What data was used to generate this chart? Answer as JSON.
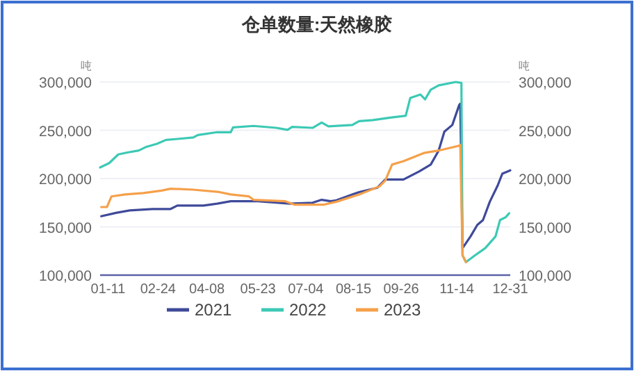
{
  "chart_data": {
    "type": "line",
    "title": "仓单数量:天然橡胶",
    "ylabel": "吨",
    "y2label": "吨",
    "xlim": [
      "--01-04",
      "--12-31"
    ],
    "xticks": [
      {
        "value": "--01-11",
        "label": "01-11"
      },
      {
        "value": "--02-24",
        "label": "02-24"
      },
      {
        "value": "--04-08",
        "label": "04-08"
      },
      {
        "value": "--05-23",
        "label": "05-23"
      },
      {
        "value": "--07-04",
        "label": "07-04"
      },
      {
        "value": "--08-15",
        "label": "08-15"
      },
      {
        "value": "--09-26",
        "label": "09-26"
      },
      {
        "value": "--11-14",
        "label": "11-14"
      },
      {
        "value": "--12-31",
        "label": "12-31"
      }
    ],
    "ylim": [
      100000,
      300000
    ],
    "yticks": [
      {
        "value": 100000,
        "label": "100,000"
      },
      {
        "value": 150000,
        "label": "150,000"
      },
      {
        "value": 200000,
        "label": "200,000"
      },
      {
        "value": 250000,
        "label": "250,000"
      },
      {
        "value": 300000,
        "label": "300,000"
      }
    ],
    "y2lim": [
      100000,
      300000
    ],
    "y2ticks": [
      {
        "value": 100000,
        "label": "100,000"
      },
      {
        "value": 150000,
        "label": "150,000"
      },
      {
        "value": 200000,
        "label": "200,000"
      },
      {
        "value": 250000,
        "label": "250,000"
      },
      {
        "value": 300000,
        "label": "300,000"
      }
    ],
    "grid": "y",
    "legend": "bottom",
    "marker": "none",
    "line_style": "solid",
    "series": [
      {
        "name": "2021",
        "color": "#3f4a9a",
        "x": [
          "--01-05",
          "--01-18",
          "--01-30",
          "--02-19",
          "--03-07",
          "--03-13",
          "--04-05",
          "--04-17",
          "--04-29",
          "--05-23",
          "--06-20",
          "--07-10",
          "--07-18",
          "--07-26",
          "--07-31",
          "--08-08",
          "--08-20",
          "--09-05",
          "--09-12",
          "--09-28",
          "--10-12",
          "--10-22",
          "--10-29",
          "--11-03",
          "--11-10",
          "--11-16",
          "--11-17",
          "--11-19",
          "--11-26",
          "--12-02",
          "--12-07",
          "--12-13",
          "--12-20",
          "--12-24",
          "--12-31"
        ],
        "values": [
          161000,
          164500,
          167000,
          168500,
          168500,
          172000,
          172000,
          174000,
          176500,
          176500,
          174000,
          175000,
          178000,
          176500,
          177500,
          181000,
          186000,
          190500,
          199000,
          199000,
          207500,
          214500,
          229000,
          248500,
          255500,
          276000,
          277500,
          128000,
          140000,
          152000,
          157000,
          176000,
          193000,
          205000,
          208500
        ]
      },
      {
        "name": "2022",
        "color": "#3cc9b5",
        "x": [
          "--01-04",
          "--01-12",
          "--01-20",
          "--01-28",
          "--02-07",
          "--02-13",
          "--02-23",
          "--03-03",
          "--03-13",
          "--03-27",
          "--03-31",
          "--04-17",
          "--04-29",
          "--05-01",
          "--05-19",
          "--06-08",
          "--06-18",
          "--06-22",
          "--07-10",
          "--07-18",
          "--07-24",
          "--08-14",
          "--08-20",
          "--09-01",
          "--09-16",
          "--09-30",
          "--10-04",
          "--10-13",
          "--10-17",
          "--10-22",
          "--10-29",
          "--11-13",
          "--11-18",
          "--11-19",
          "--11-22",
          "--11-30",
          "--12-09",
          "--12-18",
          "--12-22",
          "--12-27",
          "--12-30"
        ],
        "values": [
          211500,
          216000,
          225000,
          227000,
          229000,
          232500,
          236000,
          240000,
          241000,
          242500,
          245000,
          248000,
          248000,
          253000,
          254500,
          252500,
          250500,
          253500,
          252500,
          258000,
          254000,
          255500,
          259500,
          260500,
          263000,
          265000,
          283500,
          287000,
          282000,
          292000,
          296500,
          300000,
          299000,
          120500,
          113500,
          120500,
          128000,
          140000,
          157000,
          160000,
          164000
        ]
      },
      {
        "name": "2023",
        "color": "#f5a04a",
        "x": [
          "--01-05",
          "--01-10",
          "--01-14",
          "--01-26",
          "--02-11",
          "--02-27",
          "--03-07",
          "--03-27",
          "--04-19",
          "--04-29",
          "--05-15",
          "--05-19",
          "--06-16",
          "--06-24",
          "--07-20",
          "--07-31",
          "--08-20",
          "--09-07",
          "--09-12",
          "--09-18",
          "--09-28",
          "--10-16",
          "--10-29",
          "--11-16",
          "--11-17",
          "--11-19",
          "--11-22"
        ],
        "values": [
          170500,
          170500,
          181500,
          183500,
          185000,
          187500,
          189500,
          188500,
          186000,
          183500,
          181500,
          178000,
          176500,
          173000,
          173000,
          176000,
          183500,
          192000,
          198000,
          214500,
          218000,
          226500,
          229000,
          234000,
          235000,
          120500,
          113500
        ]
      }
    ]
  }
}
